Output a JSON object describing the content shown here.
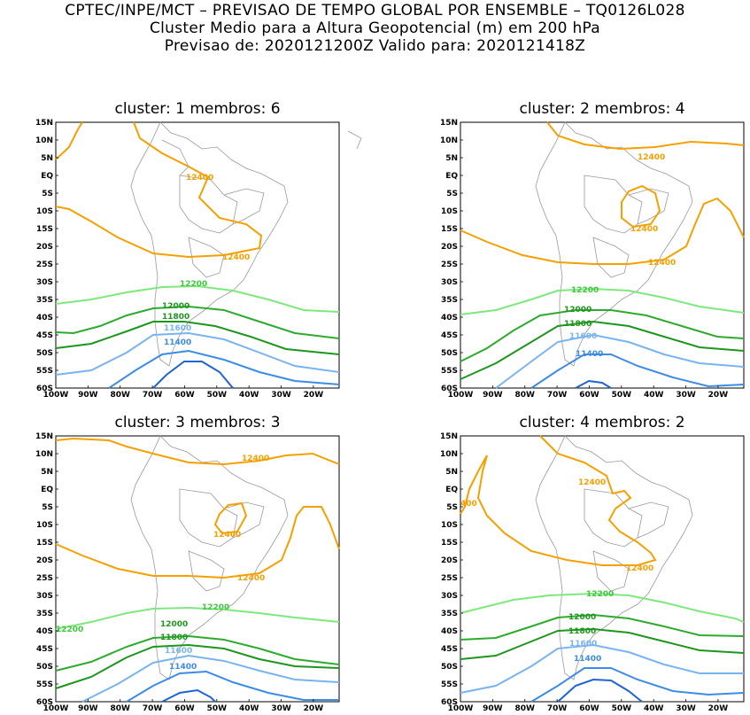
{
  "header": {
    "line1": "CPTEC/INPE/MCT – PREVISAO DE TEMPO GLOBAL POR ENSEMBLE – TQ0126L028",
    "line2": "Cluster Medio para a Altura Geopotencial (m) em 200 hPa",
    "line3": "Previsao de: 2020121200Z    Valido para: 2020121418Z"
  },
  "axes": {
    "lat_labels": [
      "15N",
      "10N",
      "5N",
      "EQ",
      "5S",
      "10S",
      "15S",
      "20S",
      "25S",
      "30S",
      "35S",
      "40S",
      "45S",
      "50S",
      "55S",
      "60S"
    ],
    "lon_labels": [
      "100W",
      "90W",
      "80W",
      "70W",
      "60W",
      "50W",
      "40W",
      "30W",
      "20W"
    ]
  },
  "colors": {
    "c12400": "#f5a000",
    "c12200": "#7ee87e",
    "c12000": "#2eaa2e",
    "c11800": "#1e961e",
    "c11600": "#78b4f0",
    "c11400": "#3c8ce6",
    "c11200": "#1e64d2",
    "coast": "#999999"
  },
  "panels": [
    {
      "title": "cluster: 1   membros: 6",
      "labels": [
        "12400",
        "12400",
        "12200",
        "12000",
        "11800",
        "11600",
        "11400"
      ]
    },
    {
      "title": "cluster: 2   membros: 4",
      "labels": [
        "12400",
        "12400",
        "12400",
        "12200",
        "12000",
        "11800",
        "11600",
        "11400"
      ]
    },
    {
      "title": "cluster: 3   membros: 3",
      "labels": [
        "12400",
        "12400",
        "12400",
        "12200",
        "12200",
        "12000",
        "11800",
        "11600",
        "11400"
      ]
    },
    {
      "title": "cluster: 4   membros: 2",
      "labels": [
        "12400",
        "12400",
        "400",
        "12200",
        "12000",
        "11800",
        "11600",
        "11400"
      ]
    }
  ]
}
